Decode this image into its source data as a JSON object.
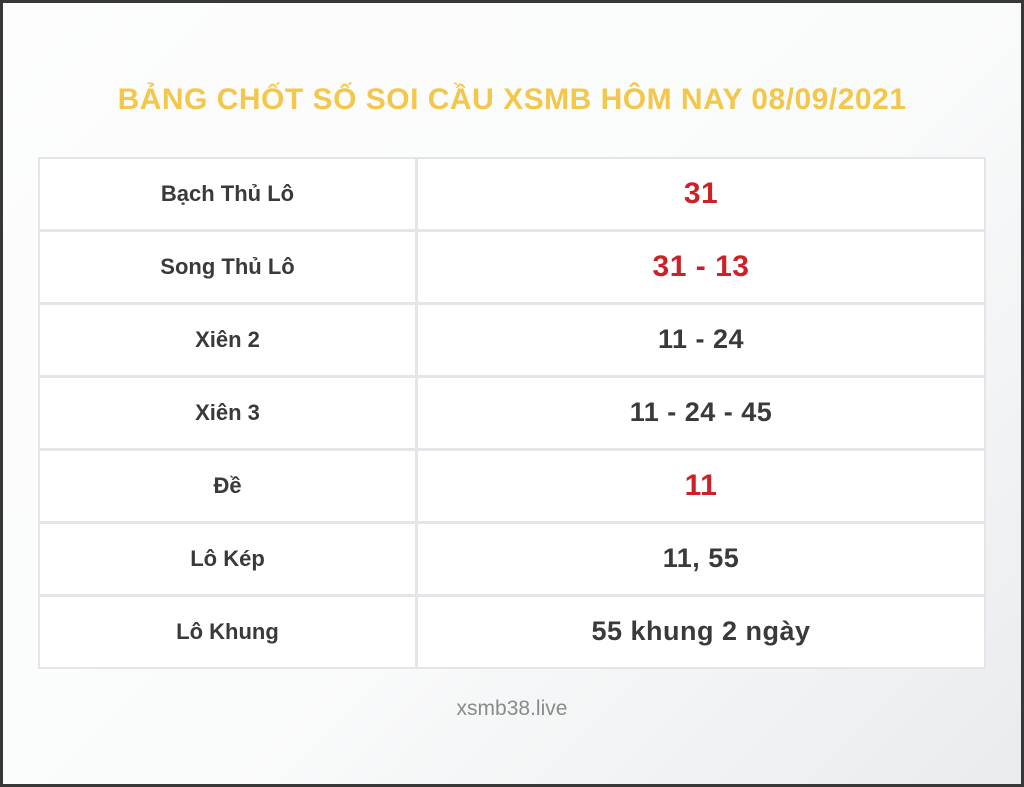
{
  "page": {
    "title": "BẢNG CHỐT SỐ SOI CẦU XSMB HÔM NAY 08/09/2021",
    "footer": "xsmb38.live"
  },
  "colors": {
    "title": "#f3c74b",
    "highlight": "#cb2127",
    "text": "#3a3a3a",
    "footer": "#8a8a8a",
    "table_border": "#e4e5e8",
    "page_border": "#383838"
  },
  "table": {
    "rows": [
      {
        "label": "Bạch Thủ Lô",
        "value": "31",
        "highlight": true
      },
      {
        "label": "Song Thủ Lô",
        "value": "31 - 13",
        "highlight": true
      },
      {
        "label": "Xiên 2",
        "value": "11 - 24",
        "highlight": false
      },
      {
        "label": "Xiên 3",
        "value": "11 - 24 - 45",
        "highlight": false
      },
      {
        "label": "Đề",
        "value": "11",
        "highlight": true
      },
      {
        "label": "Lô Kép",
        "value": "11, 55",
        "highlight": false
      },
      {
        "label": "Lô Khung",
        "value": "55 khung 2 ngày",
        "highlight": false
      }
    ]
  }
}
